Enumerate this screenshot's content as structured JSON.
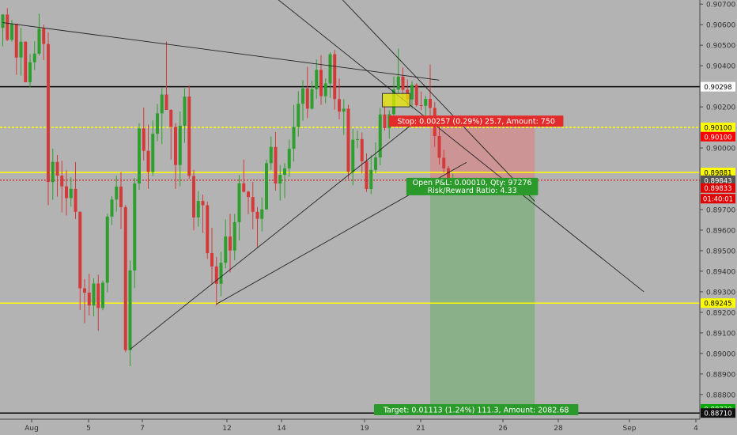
{
  "chart_data": {
    "type": "candlestick",
    "title": "",
    "xlabel": "",
    "ylabel": "",
    "ylim": [
      0.8868,
      0.9072
    ],
    "grid": false,
    "x_ticks": [
      "Aug",
      "5",
      "7",
      "12",
      "14",
      "19",
      "21",
      "26",
      "28",
      "Sep",
      "4"
    ],
    "y_ticks": [
      "0.90700",
      "0.90600",
      "0.90500",
      "0.90400",
      "0.90200",
      "0.90000",
      "0.89700",
      "0.89600",
      "0.89500",
      "0.89400",
      "0.89300",
      "0.89200",
      "0.89100",
      "0.89000",
      "0.88900",
      "0.88800"
    ],
    "price_badges": [
      {
        "label": "0.90298",
        "value": 0.90298,
        "bg": "#ffffff",
        "fg": "#000000"
      },
      {
        "label": "0.90100",
        "value": 0.901,
        "bg": "#ffff00",
        "fg": "#000000"
      },
      {
        "label": "0.90100",
        "value": 0.90055,
        "bg": "#ff0000",
        "fg": "#ffffff"
      },
      {
        "label": "0.89881",
        "value": 0.89881,
        "bg": "#ffff00",
        "fg": "#000000"
      },
      {
        "label": "0.89843",
        "value": 0.89843,
        "bg": "#555555",
        "fg": "#ffffff"
      },
      {
        "label": "0.89833",
        "value": 0.89805,
        "bg": "#e00000",
        "fg": "#ffffff"
      },
      {
        "label": "01:40:01",
        "value": 0.89753,
        "bg": "#e00000",
        "fg": "#ffffff"
      },
      {
        "label": "0.89245",
        "value": 0.89245,
        "bg": "#ffff00",
        "fg": "#000000"
      },
      {
        "label": "0.88730",
        "value": 0.8873,
        "bg": "#00aa00",
        "fg": "#ffffff"
      },
      {
        "label": "0.88710",
        "value": 0.8871,
        "bg": "#111111",
        "fg": "#ffffff"
      }
    ],
    "horizontal_lines": [
      {
        "value": 0.90298,
        "color": "#000000",
        "style": "solid"
      },
      {
        "value": 0.901,
        "color": "#ffff00",
        "style": "dashed"
      },
      {
        "value": 0.89881,
        "color": "#ffff00",
        "style": "solid"
      },
      {
        "value": 0.89843,
        "color": "#cc0000",
        "style": "dotted"
      },
      {
        "value": 0.89245,
        "color": "#ffff00",
        "style": "solid"
      },
      {
        "value": 0.8871,
        "color": "#000000",
        "style": "solid"
      }
    ],
    "trend_lines": [
      {
        "x1": 0,
        "y1": 0.9061,
        "x2": 96,
        "y2": 0.9033
      },
      {
        "x1": 55,
        "y1": 0.9082,
        "x2": 141,
        "y2": 0.893
      },
      {
        "x1": 67,
        "y1": 0.909,
        "x2": 117,
        "y2": 0.8974
      },
      {
        "x1": 28,
        "y1": 0.8902,
        "x2": 92,
        "y2": 0.9015
      },
      {
        "x1": 47,
        "y1": 0.8924,
        "x2": 102,
        "y2": 0.8993
      }
    ],
    "long_position": {
      "entry": 0.89843,
      "stop": 0.901,
      "target": 0.8873,
      "x_start": 94,
      "x_end": 117,
      "stop_label": "Stop: 0.00257 (0.29%) 25.7, Amount: 750",
      "open_label": "Open P&L: 0.00010, Qty: 97276",
      "ratio_label": "Risk/Reward Ratio: 4.33",
      "target_label": "Target: 0.01113 (1.24%) 111.3, Amount: 2082.68"
    },
    "highlight_box": {
      "x1": 84,
      "x2": 89,
      "y1": 0.90265,
      "y2": 0.902
    },
    "candles": [
      [
        0.90584,
        0.90651,
        0.90495,
        0.90649
      ],
      [
        0.90649,
        0.9068,
        0.9052,
        0.90526
      ],
      [
        0.90526,
        0.90623,
        0.90517,
        0.90604
      ],
      [
        0.90604,
        0.90604,
        0.90356,
        0.9044
      ],
      [
        0.9044,
        0.90585,
        0.90352,
        0.90517
      ],
      [
        0.90517,
        0.90519,
        0.90319,
        0.9032
      ],
      [
        0.9032,
        0.90457,
        0.90293,
        0.90417
      ],
      [
        0.90417,
        0.90519,
        0.90379,
        0.90459
      ],
      [
        0.90459,
        0.90653,
        0.9045,
        0.90581
      ],
      [
        0.90581,
        0.906,
        0.90427,
        0.90506
      ],
      [
        0.90506,
        0.90563,
        0.89721,
        0.89834
      ],
      [
        0.89834,
        0.89997,
        0.89748,
        0.89932
      ],
      [
        0.89932,
        0.89966,
        0.89763,
        0.89865
      ],
      [
        0.89865,
        0.89938,
        0.89686,
        0.89813
      ],
      [
        0.89813,
        0.89891,
        0.89671,
        0.89756
      ],
      [
        0.89756,
        0.89857,
        0.89715,
        0.89801
      ],
      [
        0.89801,
        0.89931,
        0.89654,
        0.89689
      ],
      [
        0.89689,
        0.89692,
        0.89211,
        0.89317
      ],
      [
        0.89317,
        0.89362,
        0.89147,
        0.89296
      ],
      [
        0.89296,
        0.89387,
        0.89185,
        0.89233
      ],
      [
        0.89233,
        0.89366,
        0.89181,
        0.8934
      ],
      [
        0.8934,
        0.89383,
        0.8911,
        0.89221
      ],
      [
        0.89221,
        0.89354,
        0.8921,
        0.89344
      ],
      [
        0.89344,
        0.8968,
        0.89298,
        0.89666
      ],
      [
        0.89666,
        0.89766,
        0.89625,
        0.89749
      ],
      [
        0.89749,
        0.89865,
        0.8969,
        0.89812
      ],
      [
        0.89812,
        0.89882,
        0.89605,
        0.89712
      ],
      [
        0.89712,
        0.89722,
        0.89006,
        0.89016
      ],
      [
        0.89016,
        0.89452,
        0.88938,
        0.89404
      ],
      [
        0.89404,
        0.89854,
        0.89318,
        0.89827
      ],
      [
        0.89827,
        0.90121,
        0.89796,
        0.90095
      ],
      [
        0.90095,
        0.90197,
        0.89939,
        0.89986
      ],
      [
        0.89986,
        0.90114,
        0.89801,
        0.89883
      ],
      [
        0.89883,
        0.90134,
        0.89864,
        0.90069
      ],
      [
        0.90069,
        0.90214,
        0.90033,
        0.90168
      ],
      [
        0.90168,
        0.90292,
        0.90019,
        0.9026
      ],
      [
        0.9026,
        0.90518,
        0.90197,
        0.90185
      ],
      [
        0.90185,
        0.90189,
        0.89943,
        0.90102
      ],
      [
        0.90102,
        0.90121,
        0.898,
        0.89917
      ],
      [
        0.89917,
        0.90177,
        0.89813,
        0.90108
      ],
      [
        0.90108,
        0.90291,
        0.90025,
        0.9025
      ],
      [
        0.9025,
        0.90304,
        0.89849,
        0.89863
      ],
      [
        0.89863,
        0.89893,
        0.89599,
        0.89662
      ],
      [
        0.89662,
        0.8979,
        0.89617,
        0.89742
      ],
      [
        0.89742,
        0.89773,
        0.89586,
        0.89721
      ],
      [
        0.89721,
        0.89739,
        0.8946,
        0.89488
      ],
      [
        0.89488,
        0.89611,
        0.89336,
        0.89423
      ],
      [
        0.89423,
        0.8947,
        0.89233,
        0.89339
      ],
      [
        0.89339,
        0.89495,
        0.89278,
        0.89441
      ],
      [
        0.89441,
        0.89653,
        0.89414,
        0.89569
      ],
      [
        0.89569,
        0.89679,
        0.89394,
        0.89501
      ],
      [
        0.89501,
        0.89679,
        0.89453,
        0.89639
      ],
      [
        0.89639,
        0.89868,
        0.8955,
        0.89828
      ],
      [
        0.89828,
        0.89943,
        0.89783,
        0.89787
      ],
      [
        0.89787,
        0.89792,
        0.89678,
        0.89761
      ],
      [
        0.89761,
        0.89835,
        0.89604,
        0.89689
      ],
      [
        0.89689,
        0.89713,
        0.89514,
        0.89655
      ],
      [
        0.89655,
        0.89759,
        0.89594,
        0.89701
      ],
      [
        0.89701,
        0.89943,
        0.897,
        0.89926
      ],
      [
        0.89926,
        0.90056,
        0.89893,
        0.90005
      ],
      [
        0.90005,
        0.90077,
        0.89793,
        0.89827
      ],
      [
        0.89827,
        0.89917,
        0.89744,
        0.89869
      ],
      [
        0.89869,
        0.89925,
        0.89757,
        0.89901
      ],
      [
        0.89901,
        0.90041,
        0.89859,
        0.89996
      ],
      [
        0.89996,
        0.9021,
        0.89934,
        0.90102
      ],
      [
        0.90102,
        0.90276,
        0.90055,
        0.90215
      ],
      [
        0.90215,
        0.9033,
        0.90133,
        0.9029
      ],
      [
        0.9029,
        0.90395,
        0.90145,
        0.90191
      ],
      [
        0.90191,
        0.90326,
        0.90187,
        0.90286
      ],
      [
        0.90286,
        0.90431,
        0.90239,
        0.9038
      ],
      [
        0.9038,
        0.90452,
        0.9021,
        0.90252
      ],
      [
        0.90252,
        0.90339,
        0.90218,
        0.90314
      ],
      [
        0.90314,
        0.90465,
        0.90244,
        0.90456
      ],
      [
        0.90456,
        0.90477,
        0.90186,
        0.90238
      ],
      [
        0.90238,
        0.90338,
        0.90139,
        0.90177
      ],
      [
        0.90177,
        0.90238,
        0.90063,
        0.90191
      ],
      [
        0.90191,
        0.9021,
        0.89849,
        0.89884
      ],
      [
        0.89884,
        0.90093,
        0.89818,
        0.9004
      ],
      [
        0.9004,
        0.90084,
        0.89999,
        0.90043
      ],
      [
        0.90043,
        0.90075,
        0.89877,
        0.89935
      ],
      [
        0.89935,
        0.89974,
        0.89786,
        0.898
      ],
      [
        0.898,
        0.89967,
        0.89775,
        0.89893
      ],
      [
        0.89893,
        0.90027,
        0.89878,
        0.89954
      ],
      [
        0.89954,
        0.90195,
        0.89916,
        0.90163
      ],
      [
        0.90163,
        0.90226,
        0.90085,
        0.90097
      ],
      [
        0.90097,
        0.90183,
        0.90045,
        0.90164
      ],
      [
        0.90164,
        0.90348,
        0.90102,
        0.90284
      ],
      [
        0.90284,
        0.90484,
        0.90261,
        0.90347
      ],
      [
        0.90347,
        0.90392,
        0.90233,
        0.90283
      ],
      [
        0.90283,
        0.90333,
        0.90206,
        0.90236
      ],
      [
        0.90236,
        0.90325,
        0.90191,
        0.90307
      ],
      [
        0.90307,
        0.90315,
        0.902,
        0.90208
      ],
      [
        0.90208,
        0.90275,
        0.90183,
        0.90205
      ],
      [
        0.90205,
        0.90253,
        0.90144,
        0.90239
      ],
      [
        0.90239,
        0.90406,
        0.90128,
        0.90195
      ],
      [
        0.90195,
        0.90224,
        0.90005,
        0.90058
      ],
      [
        0.90058,
        0.90109,
        0.8992,
        0.89952
      ],
      [
        0.89952,
        0.89992,
        0.8988,
        0.89901
      ],
      [
        0.89901,
        0.89911,
        0.89833,
        0.89843
      ],
      [
        0.89843,
        0.89875,
        0.89821,
        0.8985
      ]
    ]
  }
}
